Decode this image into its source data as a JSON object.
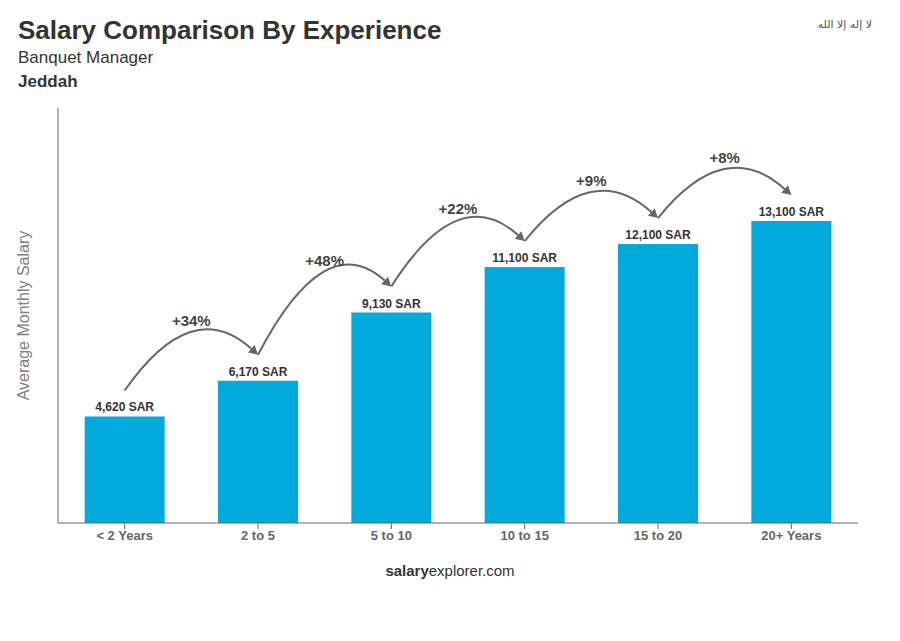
{
  "chart_data": {
    "type": "bar",
    "title": "Salary Comparison By Experience",
    "subtitle": [
      "Banquet Manager",
      "Jeddah"
    ],
    "categories": [
      "< 2 Years",
      "2 to 5",
      "5 to 10",
      "10 to 15",
      "15 to 20",
      "20+ Years"
    ],
    "values": [
      4620,
      6170,
      9130,
      11100,
      12100,
      13100
    ],
    "value_labels": [
      "4,620 SAR",
      "6,170 SAR",
      "9,130 SAR",
      "11,100 SAR",
      "12,100 SAR",
      "13,100 SAR"
    ],
    "data_labels": true,
    "annotations": [
      "+34%",
      "+48%",
      "+22%",
      "+9%",
      "+8%"
    ],
    "y_label": "Average Monthly Salary",
    "watermark": [
      "salary",
      "explorer.com"
    ],
    "flag_text": "لا إله إلا الله",
    "color": "#00AADD",
    "ylim": [
      0,
      18000
    ],
    "grid": false,
    "tick_labels": "x"
  }
}
